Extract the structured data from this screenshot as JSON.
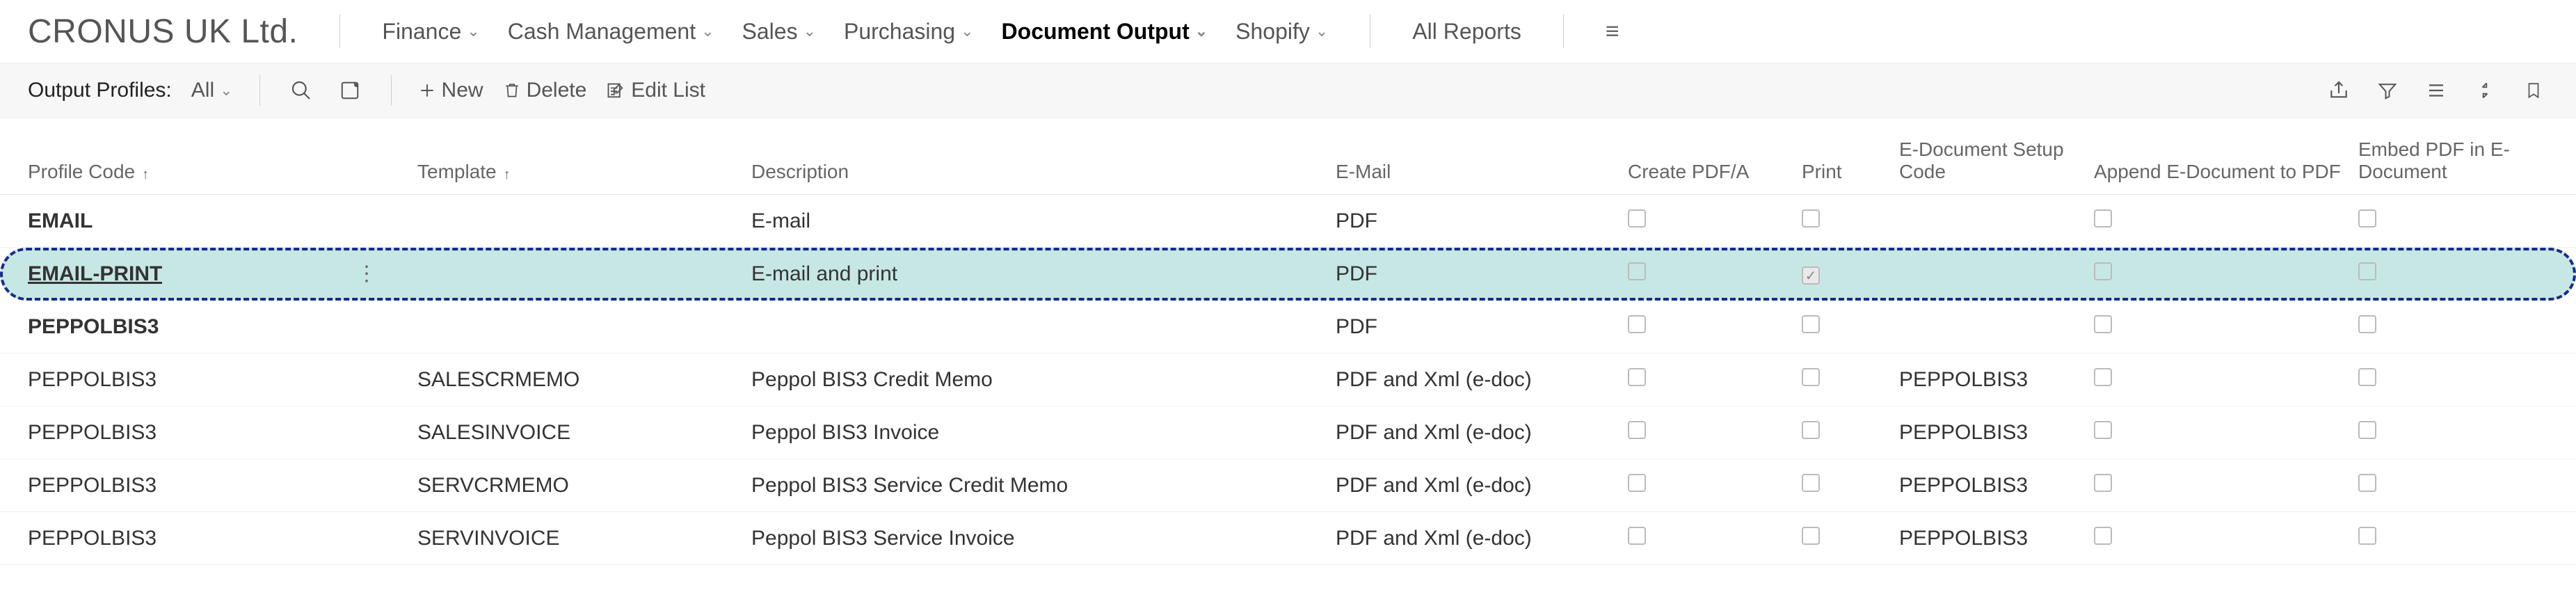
{
  "company": "CRONUS UK Ltd.",
  "menu": {
    "finance": "Finance",
    "cash": "Cash Management",
    "sales": "Sales",
    "purchasing": "Purchasing",
    "docout": "Document Output",
    "shopify": "Shopify",
    "allreports": "All Reports"
  },
  "actionbar": {
    "section": "Output Profiles:",
    "all": "All",
    "new": "New",
    "delete": "Delete",
    "edit": "Edit List"
  },
  "columns": {
    "profile": "Profile Code",
    "template": "Template",
    "description": "Description",
    "email": "E-Mail",
    "pdfa": "Create PDF/A",
    "print": "Print",
    "edocsetup": "E-Document Setup Code",
    "append": "Append E-Document to PDF",
    "embed": "Embed PDF in E-Document"
  },
  "rows": [
    {
      "profile": "EMAIL",
      "template": "",
      "desc": "E-mail",
      "email": "PDF",
      "pdfa": false,
      "print": false,
      "edoc": "",
      "append": false,
      "embed": false,
      "bold": true,
      "selected": false
    },
    {
      "profile": "EMAIL-PRINT",
      "template": "",
      "desc": "E-mail and print",
      "email": "PDF",
      "pdfa": false,
      "print": true,
      "edoc": "",
      "append": false,
      "embed": false,
      "bold": true,
      "selected": true
    },
    {
      "profile": "PEPPOLBIS3",
      "template": "",
      "desc": "",
      "email": "PDF",
      "pdfa": false,
      "print": false,
      "edoc": "",
      "append": false,
      "embed": false,
      "bold": true,
      "selected": false
    },
    {
      "profile": "PEPPOLBIS3",
      "template": "SALESCRMEMO",
      "desc": "Peppol BIS3 Credit Memo",
      "email": "PDF and Xml (e-doc)",
      "pdfa": false,
      "print": false,
      "edoc": "PEPPOLBIS3",
      "append": false,
      "embed": false,
      "bold": false,
      "selected": false
    },
    {
      "profile": "PEPPOLBIS3",
      "template": "SALESINVOICE",
      "desc": "Peppol BIS3 Invoice",
      "email": "PDF and Xml (e-doc)",
      "pdfa": false,
      "print": false,
      "edoc": "PEPPOLBIS3",
      "append": false,
      "embed": false,
      "bold": false,
      "selected": false
    },
    {
      "profile": "PEPPOLBIS3",
      "template": "SERVCRMEMO",
      "desc": "Peppol BIS3 Service Credit Memo",
      "email": "PDF and Xml (e-doc)",
      "pdfa": false,
      "print": false,
      "edoc": "PEPPOLBIS3",
      "append": false,
      "embed": false,
      "bold": false,
      "selected": false
    },
    {
      "profile": "PEPPOLBIS3",
      "template": "SERVINVOICE",
      "desc": "Peppol BIS3 Service Invoice",
      "email": "PDF and Xml (e-doc)",
      "pdfa": false,
      "print": false,
      "edoc": "PEPPOLBIS3",
      "append": false,
      "embed": false,
      "bold": false,
      "selected": false
    }
  ]
}
